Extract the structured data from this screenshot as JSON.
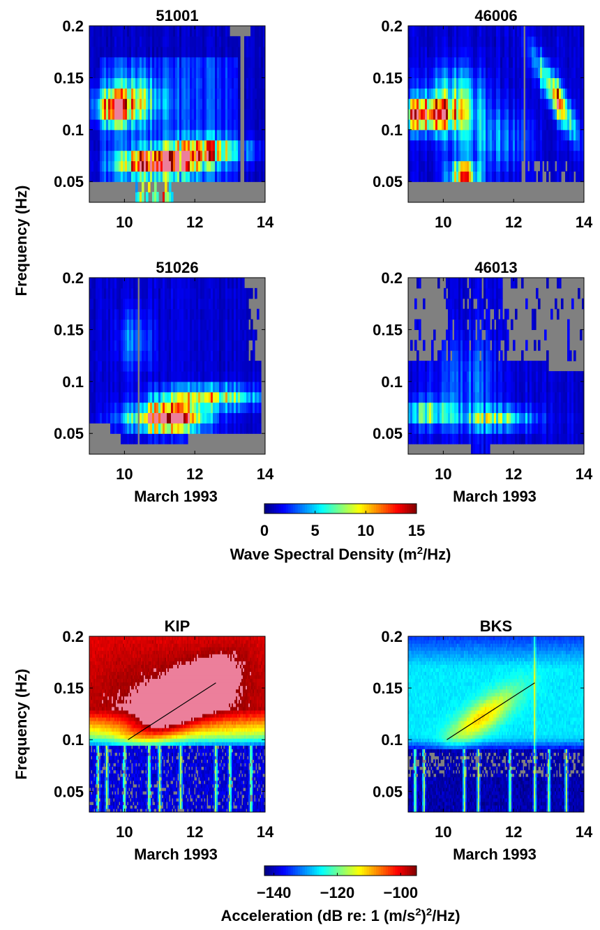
{
  "chart_data": [
    {
      "type": "heatmap",
      "title": "51001",
      "ylabel": "Frequency  (Hz)",
      "xlabel": "",
      "xlim": [
        9,
        14
      ],
      "ylim": [
        0.03,
        0.2
      ],
      "xticks": [
        "10",
        "12",
        "14"
      ],
      "yticks": [
        "0.05",
        "0.1",
        "0.15",
        "0.2"
      ],
      "zlim": [
        0,
        15
      ],
      "peaks": [
        {
          "x": 11.0,
          "y": 0.068,
          "value": 16
        },
        {
          "x": 9.7,
          "y": 0.12,
          "value": 11
        },
        {
          "x": 12.2,
          "y": 0.08,
          "value": 9
        }
      ]
    },
    {
      "type": "heatmap",
      "title": "46006",
      "ylabel": "",
      "xlabel": "",
      "xlim": [
        9,
        14
      ],
      "ylim": [
        0.03,
        0.2
      ],
      "xticks": [
        "10",
        "12",
        "14"
      ],
      "yticks": [
        "0.05",
        "0.1",
        "0.15",
        "0.2"
      ],
      "zlim": [
        0,
        15
      ],
      "peaks": [
        {
          "x": 9.5,
          "y": 0.115,
          "value": 14
        },
        {
          "x": 13.3,
          "y": 0.12,
          "value": 11
        },
        {
          "x": 10.6,
          "y": 0.058,
          "value": 10
        }
      ]
    },
    {
      "type": "heatmap",
      "title": "51026",
      "ylabel": "",
      "xlabel": "March  1993",
      "xlim": [
        9,
        14
      ],
      "ylim": [
        0.03,
        0.2
      ],
      "xticks": [
        "10",
        "12",
        "14"
      ],
      "yticks": [
        "0.05",
        "0.1",
        "0.15",
        "0.2"
      ],
      "zlim": [
        0,
        15
      ],
      "peaks": [
        {
          "x": 11.2,
          "y": 0.065,
          "value": 16
        },
        {
          "x": 12.5,
          "y": 0.085,
          "value": 8
        }
      ]
    },
    {
      "type": "heatmap",
      "title": "46013",
      "ylabel": "",
      "xlabel": "March  1993",
      "xlim": [
        9,
        14
      ],
      "ylim": [
        0.03,
        0.2
      ],
      "xticks": [
        "10",
        "12",
        "14"
      ],
      "yticks": [
        "0.05",
        "0.1",
        "0.15",
        "0.2"
      ],
      "zlim": [
        0,
        15
      ],
      "peaks": [
        {
          "x": 9.6,
          "y": 0.07,
          "value": 7
        },
        {
          "x": 11.5,
          "y": 0.065,
          "value": 6
        }
      ]
    },
    {
      "type": "heatmap",
      "title": "KIP",
      "ylabel": "Frequency  (Hz)",
      "xlabel": "March  1993",
      "xlim": [
        9,
        14
      ],
      "ylim": [
        0.03,
        0.2
      ],
      "xticks": [
        "10",
        "12",
        "14"
      ],
      "yticks": [
        "0.05",
        "0.1",
        "0.15",
        "0.2"
      ],
      "zlim": [
        -140,
        -95
      ],
      "trend_line": {
        "x": [
          10.1,
          12.6
        ],
        "y": [
          0.1,
          0.155
        ]
      }
    },
    {
      "type": "heatmap",
      "title": "BKS",
      "ylabel": "",
      "xlabel": "March  1993",
      "xlim": [
        9,
        14
      ],
      "ylim": [
        0.03,
        0.2
      ],
      "xticks": [
        "10",
        "12",
        "14"
      ],
      "yticks": [
        "0.05",
        "0.1",
        "0.15",
        "0.2"
      ],
      "zlim": [
        -140,
        -95
      ],
      "trend_line": {
        "x": [
          10.1,
          12.6
        ],
        "y": [
          0.1,
          0.155
        ]
      }
    }
  ],
  "colorbars": [
    {
      "label_pre": "Wave  Spectral  Density  (m",
      "label_sup": "2",
      "label_post": "/Hz)",
      "ticks": [
        "0",
        "5",
        "10",
        "15"
      ],
      "values": [
        0,
        5,
        10,
        15
      ],
      "range": [
        0,
        15
      ]
    },
    {
      "label_pre": "Acceleration  (dB re: 1 (m/s",
      "label_sup": "2",
      "label_post": ")",
      "label_sup2": "2",
      "label_post2": "/Hz)",
      "ticks": [
        "−140",
        "−120",
        "−100"
      ],
      "values": [
        -140,
        -120,
        -100
      ],
      "range": [
        -143,
        -95
      ]
    }
  ],
  "colors": {
    "missing": "#808080",
    "saturated": "#ec7f9b",
    "trend_line": "#000000"
  }
}
